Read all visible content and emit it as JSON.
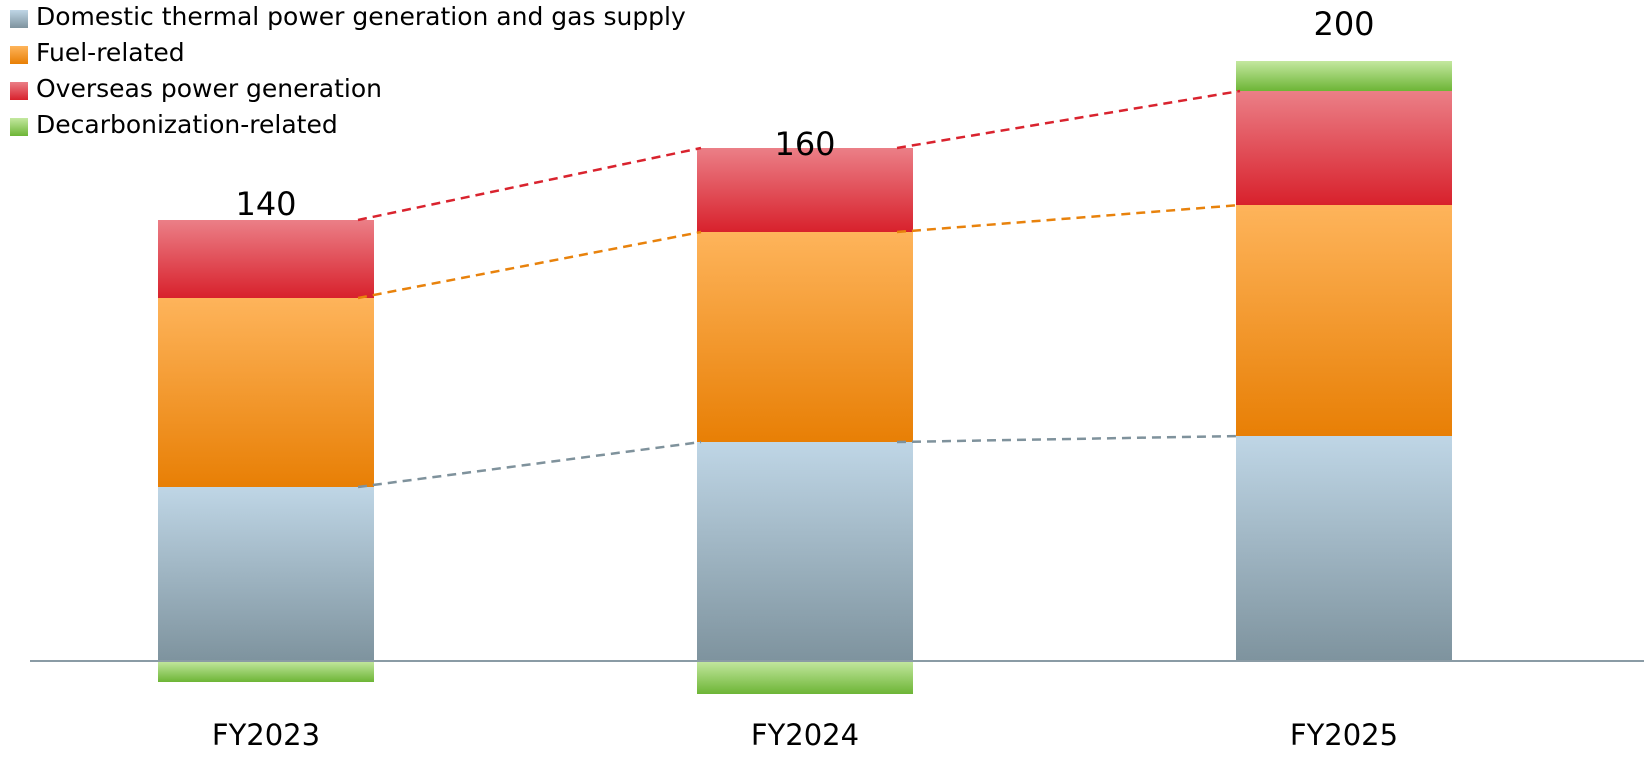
{
  "chart_data": {
    "type": "stacked_bar",
    "categories": [
      "FY2023",
      "FY2024",
      "FY2025"
    ],
    "series": [
      {
        "name": "Domestic thermal power generation and gas supply",
        "color": "#9fb4c2",
        "values": [
          58,
          73,
          75
        ]
      },
      {
        "name": "Fuel-related",
        "color": "#f39a2f",
        "values": [
          63,
          70,
          77
        ]
      },
      {
        "name": "Overseas power generation",
        "color": "#e04a55",
        "values": [
          26,
          28,
          38
        ]
      },
      {
        "name": "Decarbonization-related",
        "color": "#97ce68",
        "values": [
          -7,
          -11,
          10
        ]
      }
    ],
    "totals": [
      140,
      160,
      200
    ],
    "ylim": [
      -30,
      210
    ]
  }
}
